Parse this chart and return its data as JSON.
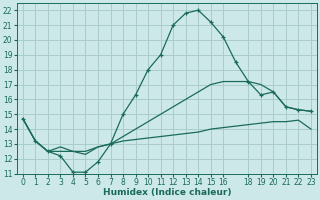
{
  "xlabel": "Humidex (Indice chaleur)",
  "bg_color": "#cce8e8",
  "grid_color": "#aacccc",
  "line_color": "#1a6b5a",
  "x_hours": [
    0,
    1,
    2,
    3,
    4,
    5,
    6,
    7,
    8,
    9,
    10,
    11,
    12,
    13,
    14,
    15,
    16,
    17,
    18,
    19,
    20,
    21,
    22,
    23
  ],
  "line1": [
    14.7,
    13.2,
    12.5,
    12.2,
    11.1,
    11.1,
    11.8,
    13.0,
    15.0,
    16.3,
    18.0,
    19.0,
    21.0,
    21.8,
    22.0,
    21.2,
    20.2,
    18.5,
    17.2,
    16.3,
    16.5,
    15.5,
    15.3,
    15.2
  ],
  "line2": [
    14.7,
    13.2,
    12.5,
    12.8,
    12.5,
    12.3,
    12.8,
    13.0,
    13.5,
    14.0,
    14.5,
    15.0,
    15.5,
    16.0,
    16.5,
    17.0,
    17.2,
    17.2,
    17.2,
    17.0,
    16.5,
    15.5,
    15.3,
    15.2
  ],
  "line3": [
    14.7,
    13.2,
    12.5,
    12.5,
    12.5,
    12.5,
    12.8,
    13.0,
    13.2,
    13.3,
    13.4,
    13.5,
    13.6,
    13.7,
    13.8,
    14.0,
    14.1,
    14.2,
    14.3,
    14.4,
    14.5,
    14.5,
    14.6,
    14.0
  ],
  "ylim": [
    11,
    22.5
  ],
  "xlim": [
    -0.5,
    23.5
  ],
  "yticks": [
    11,
    12,
    13,
    14,
    15,
    16,
    17,
    18,
    19,
    20,
    21,
    22
  ],
  "xticks": [
    0,
    1,
    2,
    3,
    4,
    5,
    6,
    7,
    8,
    9,
    10,
    11,
    12,
    13,
    14,
    15,
    16,
    18,
    19,
    20,
    21,
    22,
    23
  ],
  "tick_fontsize": 5.5,
  "xlabel_fontsize": 6.5
}
